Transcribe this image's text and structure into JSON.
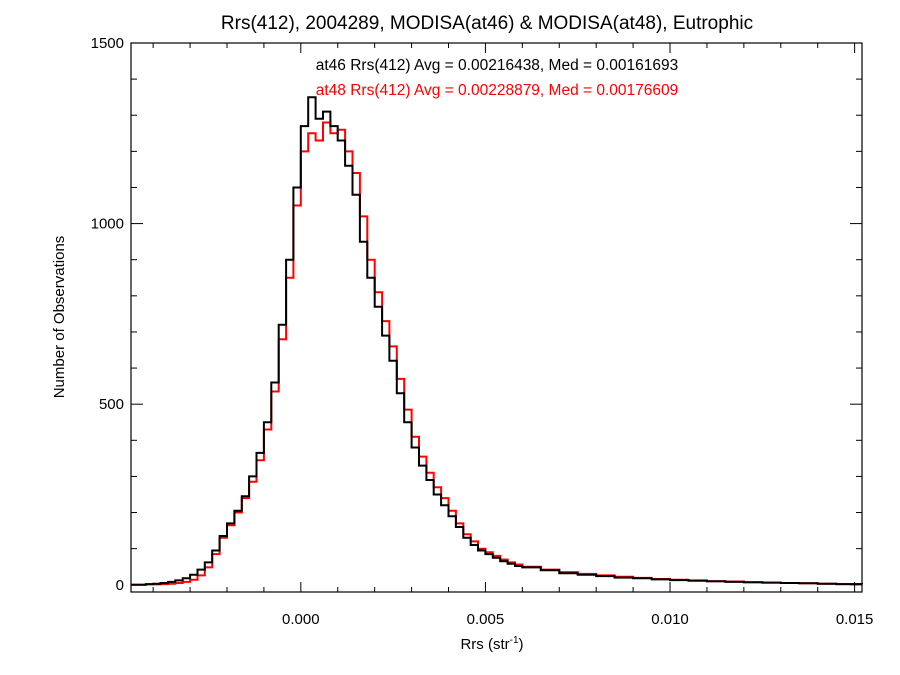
{
  "chart_data": {
    "type": "line",
    "title": "Rrs(412), 2004289, MODISA(at46) & MODISA(at48), Eutrophic",
    "xlabel_main": "Rrs (str",
    "xlabel_sup": "-1",
    "xlabel_tail": ")",
    "ylabel": "Number of Observations",
    "xlim": [
      -0.0046,
      0.0152
    ],
    "ylim": [
      -20,
      1500
    ],
    "x_ticks": [
      0.0,
      0.005,
      0.01,
      0.015
    ],
    "x_tick_labels": [
      "0.000",
      "0.005",
      "0.010",
      "0.015"
    ],
    "x_minor_step": 0.001,
    "y_ticks": [
      0,
      500,
      1000,
      1500
    ],
    "y_tick_labels": [
      "0",
      "500",
      "1000",
      "1500"
    ],
    "y_minor_step": 100,
    "grid": false,
    "annotations": [
      {
        "text": "at46 Rrs(412) Avg = 0.00216438, Med = 0.00161693",
        "color": "#000000"
      },
      {
        "text": "at48 Rrs(412) Avg = 0.00228879, Med = 0.00176609",
        "color": "#ff0000"
      }
    ],
    "series": [
      {
        "color": "#000000",
        "x": [
          -0.0046,
          -0.0042,
          -0.004,
          -0.0038,
          -0.0036,
          -0.0034,
          -0.0032,
          -0.003,
          -0.0028,
          -0.0026,
          -0.0024,
          -0.0022,
          -0.002,
          -0.0018,
          -0.0016,
          -0.0014,
          -0.0012,
          -0.001,
          -0.0008,
          -0.0006,
          -0.0004,
          -0.0002,
          0.0,
          0.0002,
          0.0004,
          0.0006,
          0.0008,
          0.001,
          0.0012,
          0.0014,
          0.0016,
          0.0018,
          0.002,
          0.0022,
          0.0024,
          0.0026,
          0.0028,
          0.003,
          0.0032,
          0.0034,
          0.0036,
          0.0038,
          0.004,
          0.0042,
          0.0044,
          0.0046,
          0.0048,
          0.005,
          0.0052,
          0.0054,
          0.0056,
          0.0058,
          0.006,
          0.0065,
          0.007,
          0.0075,
          0.008,
          0.0085,
          0.009,
          0.0095,
          0.01,
          0.0105,
          0.011,
          0.0115,
          0.012,
          0.0125,
          0.013,
          0.0135,
          0.014,
          0.0145,
          0.015,
          0.0152
        ],
        "values": [
          0,
          2,
          3,
          5,
          8,
          12,
          18,
          28,
          42,
          62,
          95,
          135,
          170,
          205,
          245,
          300,
          365,
          450,
          560,
          720,
          900,
          1100,
          1270,
          1350,
          1290,
          1310,
          1270,
          1230,
          1160,
          1080,
          950,
          850,
          770,
          690,
          620,
          530,
          450,
          380,
          330,
          290,
          250,
          220,
          190,
          160,
          130,
          110,
          95,
          85,
          75,
          65,
          58,
          52,
          48,
          40,
          32,
          28,
          24,
          20,
          18,
          15,
          13,
          11,
          10,
          8,
          7,
          6,
          5,
          4,
          3,
          2,
          2,
          1
        ]
      },
      {
        "color": "#ff0000",
        "x": [
          -0.0046,
          -0.0042,
          -0.004,
          -0.0038,
          -0.0036,
          -0.0034,
          -0.0032,
          -0.003,
          -0.0028,
          -0.0026,
          -0.0024,
          -0.0022,
          -0.002,
          -0.0018,
          -0.0016,
          -0.0014,
          -0.0012,
          -0.001,
          -0.0008,
          -0.0006,
          -0.0004,
          -0.0002,
          0.0,
          0.0002,
          0.0004,
          0.0006,
          0.0008,
          0.001,
          0.0012,
          0.0014,
          0.0016,
          0.0018,
          0.002,
          0.0022,
          0.0024,
          0.0026,
          0.0028,
          0.003,
          0.0032,
          0.0034,
          0.0036,
          0.0038,
          0.004,
          0.0042,
          0.0044,
          0.0046,
          0.0048,
          0.005,
          0.0052,
          0.0054,
          0.0056,
          0.0058,
          0.006,
          0.0065,
          0.007,
          0.0075,
          0.008,
          0.0085,
          0.009,
          0.0095,
          0.01,
          0.0105,
          0.011,
          0.0115,
          0.012,
          0.0125,
          0.013,
          0.0135,
          0.014,
          0.0145,
          0.015,
          0.0152
        ],
        "values": [
          0,
          1,
          1,
          2,
          3,
          5,
          8,
          14,
          26,
          48,
          85,
          130,
          165,
          200,
          240,
          285,
          345,
          430,
          535,
          680,
          850,
          1050,
          1200,
          1250,
          1230,
          1280,
          1250,
          1260,
          1200,
          1140,
          1020,
          900,
          810,
          730,
          660,
          570,
          485,
          410,
          355,
          310,
          270,
          240,
          205,
          170,
          140,
          120,
          100,
          90,
          80,
          70,
          62,
          56,
          50,
          42,
          35,
          30,
          26,
          22,
          19,
          16,
          14,
          12,
          10,
          9,
          7,
          6,
          5,
          4,
          3,
          2,
          2,
          1
        ]
      }
    ]
  }
}
